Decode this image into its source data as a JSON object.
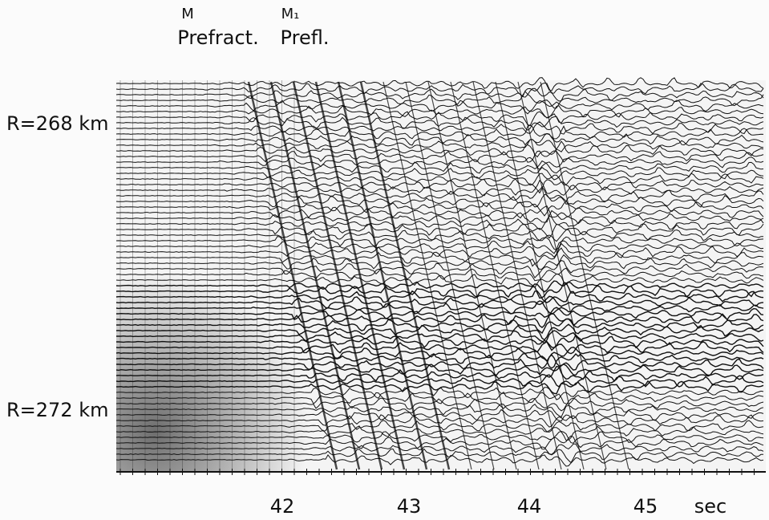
{
  "phases": [
    {
      "marker": "M",
      "label": "Prefract."
    },
    {
      "marker": "M₁",
      "label": "Prefl."
    }
  ],
  "distance_labels": [
    "R=268 km",
    "R=272 km"
  ],
  "time_axis": {
    "ticks": [
      42,
      43,
      44,
      45
    ],
    "unit": "sec"
  }
}
